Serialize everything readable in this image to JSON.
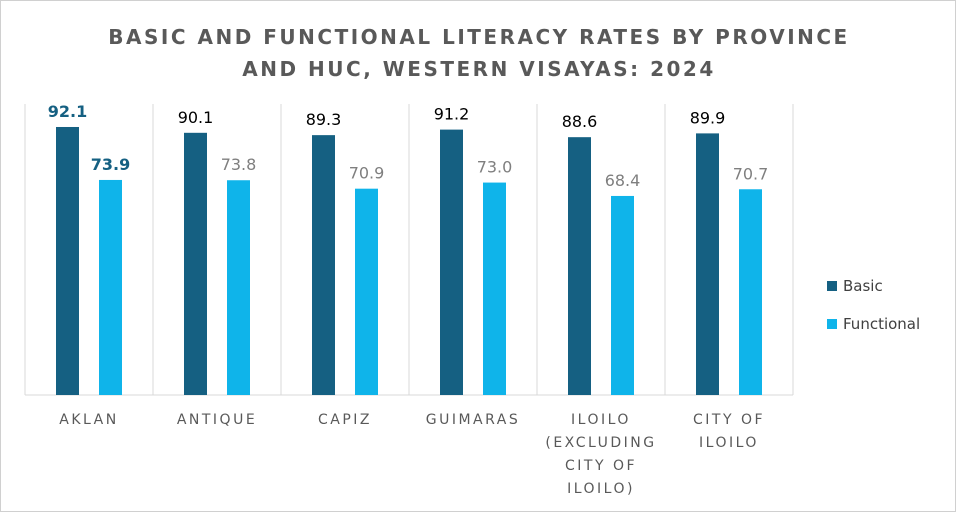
{
  "chart_data": {
    "type": "bar",
    "title_lines": [
      "BASIC AND FUNCTIONAL LITERACY RATES BY PROVINCE",
      "AND HUC, WESTERN VISAYAS: 2024"
    ],
    "categories": [
      [
        "AKLAN"
      ],
      [
        "ANTIQUE"
      ],
      [
        "CAPIZ"
      ],
      [
        "GUIMARAS"
      ],
      [
        "ILOILO",
        "(EXCLUDING",
        "CITY OF",
        "ILOILO)"
      ],
      [
        "CITY OF",
        "ILOILO"
      ]
    ],
    "series": [
      {
        "name": "Basic",
        "values": [
          92.1,
          90.1,
          89.3,
          91.2,
          88.6,
          89.9
        ],
        "labels": [
          "92.1",
          "90.1",
          "89.3",
          "91.2",
          "88.6",
          "89.9"
        ]
      },
      {
        "name": "Functional",
        "values": [
          73.9,
          73.8,
          70.9,
          73.0,
          68.4,
          70.7
        ],
        "labels": [
          "73.9",
          "73.8",
          "70.9",
          "73.0",
          "68.4",
          "70.7"
        ]
      }
    ],
    "ylim": [
      0,
      100
    ],
    "grid": false,
    "legend_position": "right",
    "highlighted_category": "AKLAN"
  },
  "colors": {
    "basic": "#156082",
    "functional": "#0fb4ea",
    "highlight_label": "#156082",
    "basic_label": "#000000",
    "functional_label": "#7f7f7f",
    "axis_label": "#595959",
    "divider": "#d9d9d9"
  }
}
